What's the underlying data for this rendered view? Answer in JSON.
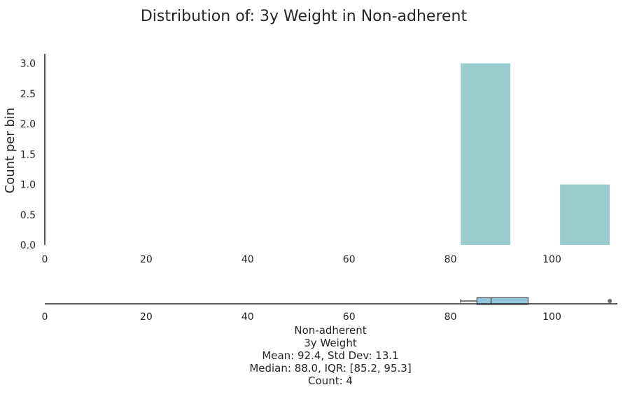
{
  "chart_data": [
    {
      "type": "bar",
      "title": "Distribution of: 3y Weight in Non-adherent",
      "ylabel": "Count per bin",
      "xlabel": "",
      "xlim": [
        0,
        113
      ],
      "ylim": [
        0,
        3.15
      ],
      "x_ticks": [
        0,
        20,
        40,
        60,
        80,
        100
      ],
      "y_ticks": [
        0.0,
        0.5,
        1.0,
        1.5,
        2.0,
        2.5,
        3.0
      ],
      "y_tick_labels": [
        "0.0",
        "0.5",
        "1.0",
        "1.5",
        "2.0",
        "2.5",
        "3.0"
      ],
      "bar_color": "#9acccd",
      "grid": false,
      "bins": [
        {
          "x0": 82.0,
          "x1": 91.8,
          "count": 3
        },
        {
          "x0": 101.6,
          "x1": 111.4,
          "count": 1
        }
      ]
    },
    {
      "type": "box",
      "group": "Non-adherent",
      "variable": "3y Weight",
      "whisker_low": 82.0,
      "q1": 85.2,
      "median": 88.0,
      "q3": 95.3,
      "whisker_high": 95.3,
      "outliers": [
        111.4
      ],
      "box_color": "#93c4dc",
      "x_ticks": [
        0,
        20,
        40,
        60,
        80,
        100
      ]
    }
  ],
  "stats": {
    "group": "Non-adherent",
    "variable": "3y Weight",
    "mean_std": "Mean: 92.4, Std Dev: 13.1",
    "median_iqr": "Median: 88.0, IQR: [85.2, 95.3]",
    "count": "Count: 4"
  }
}
